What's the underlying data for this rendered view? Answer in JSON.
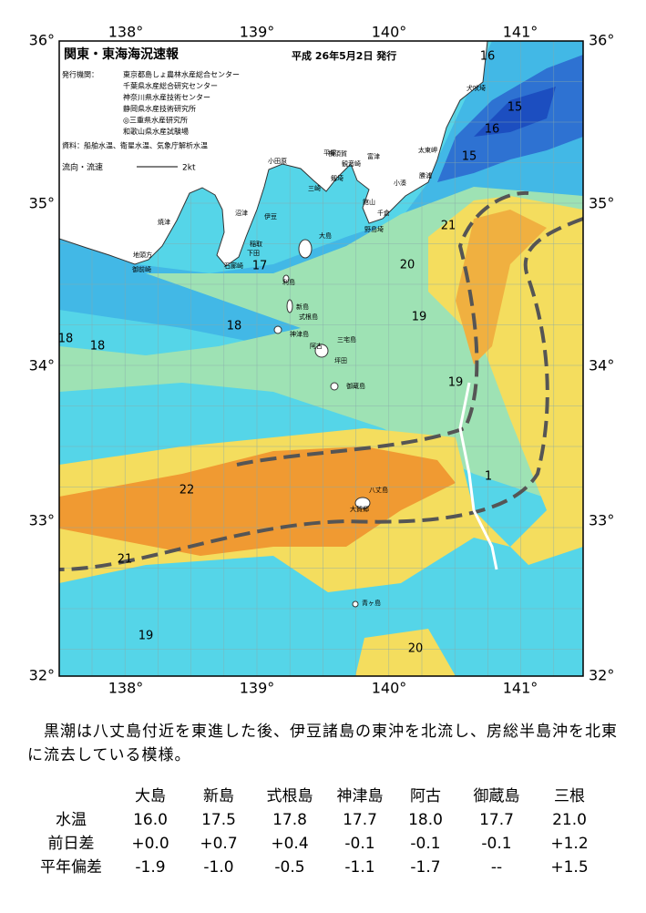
{
  "header": {
    "title": "関東・東海海況速報",
    "issued": "平成 26年5月2日 発行",
    "issuers_label": "発行機関：",
    "issuers": [
      "東京都島しょ農林水産総合センター",
      "千葉県水産総合研究センター",
      "神奈川県水産技術センター",
      "静岡県水産技術研究所",
      "◎三重県水産研究所",
      "和歌山県水産試験場"
    ],
    "sources": "資料：船舶水温、衛星水温、気象庁解析水温",
    "flow_label": "流向・流速",
    "flow_scale": "2kt"
  },
  "map": {
    "lon_labels": [
      "138°",
      "139°",
      "140°",
      "141°"
    ],
    "lat_labels": [
      "36°",
      "35°",
      "34°",
      "33°",
      "32°"
    ],
    "places": [
      "犬吠埼",
      "太東岬",
      "勝浦",
      "小湊",
      "富津",
      "千倉",
      "館山",
      "野島埼",
      "平塚",
      "横須賀",
      "観音崎",
      "剱埼",
      "三崎",
      "小田原",
      "沼津",
      "伊豆",
      "稲取",
      "下田",
      "石廊崎",
      "焼津",
      "御前崎",
      "地頭方",
      "大島",
      "利島",
      "新島",
      "式根島",
      "神津島",
      "三宅島",
      "阿古",
      "坪田",
      "御蔵島",
      "八丈島",
      "大賀郷",
      "青ヶ島"
    ],
    "isotherm_labels": [
      "16",
      "15",
      "16",
      "15",
      "21",
      "20",
      "19",
      "17",
      "18",
      "18",
      "18",
      "19",
      "22",
      "21",
      "19",
      "20",
      "1"
    ]
  },
  "summary": "　黒潮は八丈島付近を東進した後、伊豆諸島の東沖を北流し、房総半島沖を北東に流去している模様。",
  "table": {
    "columns": [
      "大島",
      "新島",
      "式根島",
      "神津島",
      "阿古",
      "御蔵島",
      "三根"
    ],
    "rows": [
      [
        "水温",
        "16.0",
        "17.5",
        "17.8",
        "17.7",
        "18.0",
        "17.7",
        "21.0"
      ],
      [
        "前日差",
        "+0.0",
        "+0.7",
        "+0.4",
        "-0.1",
        "-0.1",
        "-0.1",
        "+1.2"
      ],
      [
        "平年偏差",
        "-1.9",
        "-1.0",
        "-0.5",
        "-1.1",
        "-1.7",
        "--",
        "+1.5"
      ]
    ]
  }
}
